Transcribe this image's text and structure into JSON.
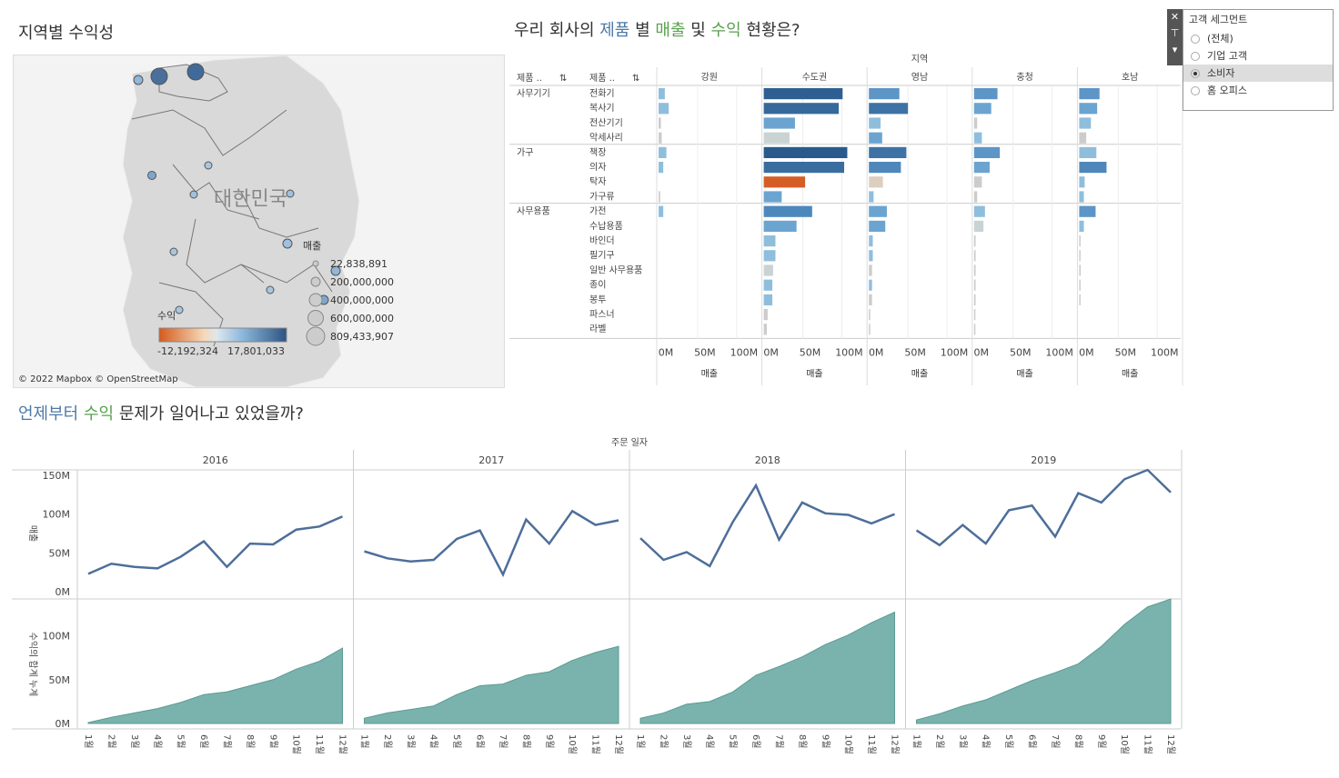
{
  "map_panel": {
    "title": "지역별 수익성",
    "country_label": "대한민국",
    "size_legend_title": "매출",
    "size_legend_values": [
      "22,838,891",
      "200,000,000",
      "400,000,000",
      "600,000,000",
      "809,433,907"
    ],
    "color_legend_title": "수익",
    "color_legend_min": "-12,192,324",
    "color_legend_max": "17,801,033",
    "attribution": "© 2022 Mapbox © OpenStreetMap"
  },
  "product_panel": {
    "title_parts": [
      "우리 회사의 ",
      "제품",
      " 별 ",
      "매출",
      " 및 ",
      "수익",
      " 현황은?"
    ],
    "region_header": "지역",
    "col_header_1": "제품 ..",
    "col_header_2": "제품 ..",
    "axis_ticks": [
      "0M",
      "50M",
      "100M"
    ],
    "axis_title": "매출"
  },
  "filter": {
    "title": "고객 세그먼트",
    "options": [
      "(전체)",
      "기업 고객",
      "소비자",
      "홈 오피스"
    ],
    "selected_index": 2
  },
  "trend_panel": {
    "title_parts": [
      "언제부터 ",
      "수익",
      " 문제가 일어나고 있었을까?"
    ],
    "header": "주문 일자",
    "years": [
      "2016",
      "2017",
      "2018",
      "2019"
    ],
    "sales_axis_title": "매출",
    "sales_ticks": [
      "150M",
      "100M",
      "50M",
      "0M"
    ],
    "profit_axis_title": "수익의 합계 누계",
    "profit_ticks": [
      "100M",
      "50M",
      "0M"
    ],
    "month_labels": [
      "1월",
      "2월",
      "3월",
      "4월",
      "5월",
      "6월",
      "7월",
      "8월",
      "9월",
      "10월",
      "11월",
      "12월"
    ]
  },
  "chart_data": [
    {
      "type": "bar",
      "title": "우리 회사의 제품 별 매출 및 수익 현황은?",
      "regions": [
        "강원",
        "수도권",
        "영남",
        "충청",
        "호남"
      ],
      "categories": [
        {
          "name": "사무기기",
          "items": [
            "전화기",
            "복사기",
            "전산기기",
            "악세사리"
          ]
        },
        {
          "name": "가구",
          "items": [
            "책장",
            "의자",
            "탁자",
            "가구류"
          ]
        },
        {
          "name": "사무용품",
          "items": [
            "가전",
            "수납용품",
            "바인더",
            "필기구",
            "일반 사무용품",
            "종이",
            "봉투",
            "파스너",
            "라벨"
          ]
        }
      ],
      "xlabel": "매출",
      "xlim": [
        0,
        130
      ],
      "unit": "M",
      "values": {
        "강원": [
          8,
          13,
          3,
          4,
          10,
          6,
          0,
          2,
          6,
          0,
          0,
          0,
          0,
          0,
          0,
          0,
          0
        ],
        "수도권": [
          101,
          96,
          40,
          33,
          107,
          103,
          53,
          23,
          62,
          42,
          15,
          15,
          12,
          11,
          11,
          5,
          4
        ],
        "영남": [
          39,
          50,
          15,
          17,
          48,
          41,
          18,
          6,
          23,
          21,
          5,
          5,
          4,
          4,
          4,
          1,
          1
        ],
        "충청": [
          30,
          22,
          4,
          10,
          33,
          20,
          10,
          4,
          14,
          12,
          2,
          2,
          2,
          2,
          2,
          1,
          1
        ],
        "호남": [
          26,
          23,
          15,
          9,
          22,
          35,
          7,
          6,
          21,
          6,
          1,
          1,
          2,
          1,
          1,
          0,
          0
        ]
      },
      "colors": {
        "강원": [
          "#8fbedd",
          "#8fbedd",
          "#cccccc",
          "#cccccc",
          "#8fbedd",
          "#8fbedd",
          "#cccccc",
          "#cccccc",
          "#8fbedd",
          "#cccccc",
          "#cccccc",
          "#cccccc",
          "#cccccc",
          "#cccccc",
          "#cccccc",
          "#cccccc",
          "#cccccc"
        ],
        "수도권": [
          "#2f5f92",
          "#36689b",
          "#6ba4d0",
          "#c9d3d3",
          "#2a5a8c",
          "#3a6d9f",
          "#d55e27",
          "#6ba4d0",
          "#4d88bd",
          "#6ba4d0",
          "#8fbedd",
          "#8fbedd",
          "#c9d3d3",
          "#8fbedd",
          "#8fbedd",
          "#cccccc",
          "#cccccc"
        ],
        "영남": [
          "#5d95c7",
          "#3e72a5",
          "#8fbedd",
          "#6ba4d0",
          "#3e72a5",
          "#4f87ba",
          "#ddcfc0",
          "#8fbedd",
          "#6ba4d0",
          "#6ba4d0",
          "#8fbedd",
          "#8fbedd",
          "#cccccc",
          "#8fbedd",
          "#cccccc",
          "#cccccc",
          "#cccccc"
        ],
        "충청": [
          "#5d95c7",
          "#6ba4d0",
          "#cccccc",
          "#8fbedd",
          "#5d95c7",
          "#6ba4d0",
          "#cccccc",
          "#cccccc",
          "#8fbedd",
          "#c9d3d3",
          "#cccccc",
          "#cccccc",
          "#cccccc",
          "#cccccc",
          "#cccccc",
          "#cccccc",
          "#cccccc"
        ],
        "호남": [
          "#5d95c7",
          "#6ba4d0",
          "#8fbedd",
          "#cccccc",
          "#8fbedd",
          "#4f87ba",
          "#8fbedd",
          "#8fbedd",
          "#5d95c7",
          "#8fbedd",
          "#cccccc",
          "#cccccc",
          "#cccccc",
          "#cccccc",
          "#cccccc",
          "#cccccc",
          "#cccccc"
        ]
      }
    },
    {
      "type": "line",
      "title": "언제부터 수익 문제가 일어나고 있었을까?",
      "x": [
        "1월",
        "2월",
        "3월",
        "4월",
        "5월",
        "6월",
        "7월",
        "8월",
        "9월",
        "10월",
        "11월",
        "12월"
      ],
      "ylabel": "매출",
      "ylim": [
        0,
        150
      ],
      "unit": "M",
      "series": [
        {
          "name": "2016",
          "values": [
            23,
            36,
            32,
            30,
            45,
            65,
            32,
            62,
            61,
            80,
            84,
            97
          ]
        },
        {
          "name": "2017",
          "values": [
            52,
            43,
            39,
            41,
            68,
            79,
            22,
            93,
            62,
            104,
            86,
            92
          ]
        },
        {
          "name": "2018",
          "values": [
            69,
            41,
            51,
            33,
            90,
            137,
            67,
            115,
            101,
            99,
            88,
            100
          ]
        },
        {
          "name": "2019",
          "values": [
            79,
            60,
            86,
            62,
            105,
            111,
            71,
            127,
            115,
            145,
            157,
            128
          ]
        }
      ],
      "color": "#4e6e9a"
    },
    {
      "type": "area",
      "title": "수익의 합계 누계",
      "x": [
        "1월",
        "2월",
        "3월",
        "4월",
        "5월",
        "6월",
        "7월",
        "8월",
        "9월",
        "10월",
        "11월",
        "12월"
      ],
      "ylabel": "수익의 합계 누계",
      "ylim": [
        0,
        140
      ],
      "unit": "M",
      "series": [
        {
          "name": "2016",
          "values": [
            1,
            7,
            12,
            17,
            24,
            33,
            36,
            43,
            50,
            62,
            71,
            86
          ]
        },
        {
          "name": "2017",
          "values": [
            6,
            12,
            16,
            20,
            33,
            43,
            45,
            55,
            59,
            72,
            81,
            88
          ]
        },
        {
          "name": "2018",
          "values": [
            6,
            12,
            22,
            25,
            36,
            55,
            65,
            76,
            90,
            101,
            115,
            127
          ]
        },
        {
          "name": "2019",
          "values": [
            4,
            11,
            20,
            27,
            38,
            49,
            58,
            68,
            88,
            113,
            133,
            142
          ]
        }
      ],
      "color": "#7ab3ad"
    }
  ]
}
